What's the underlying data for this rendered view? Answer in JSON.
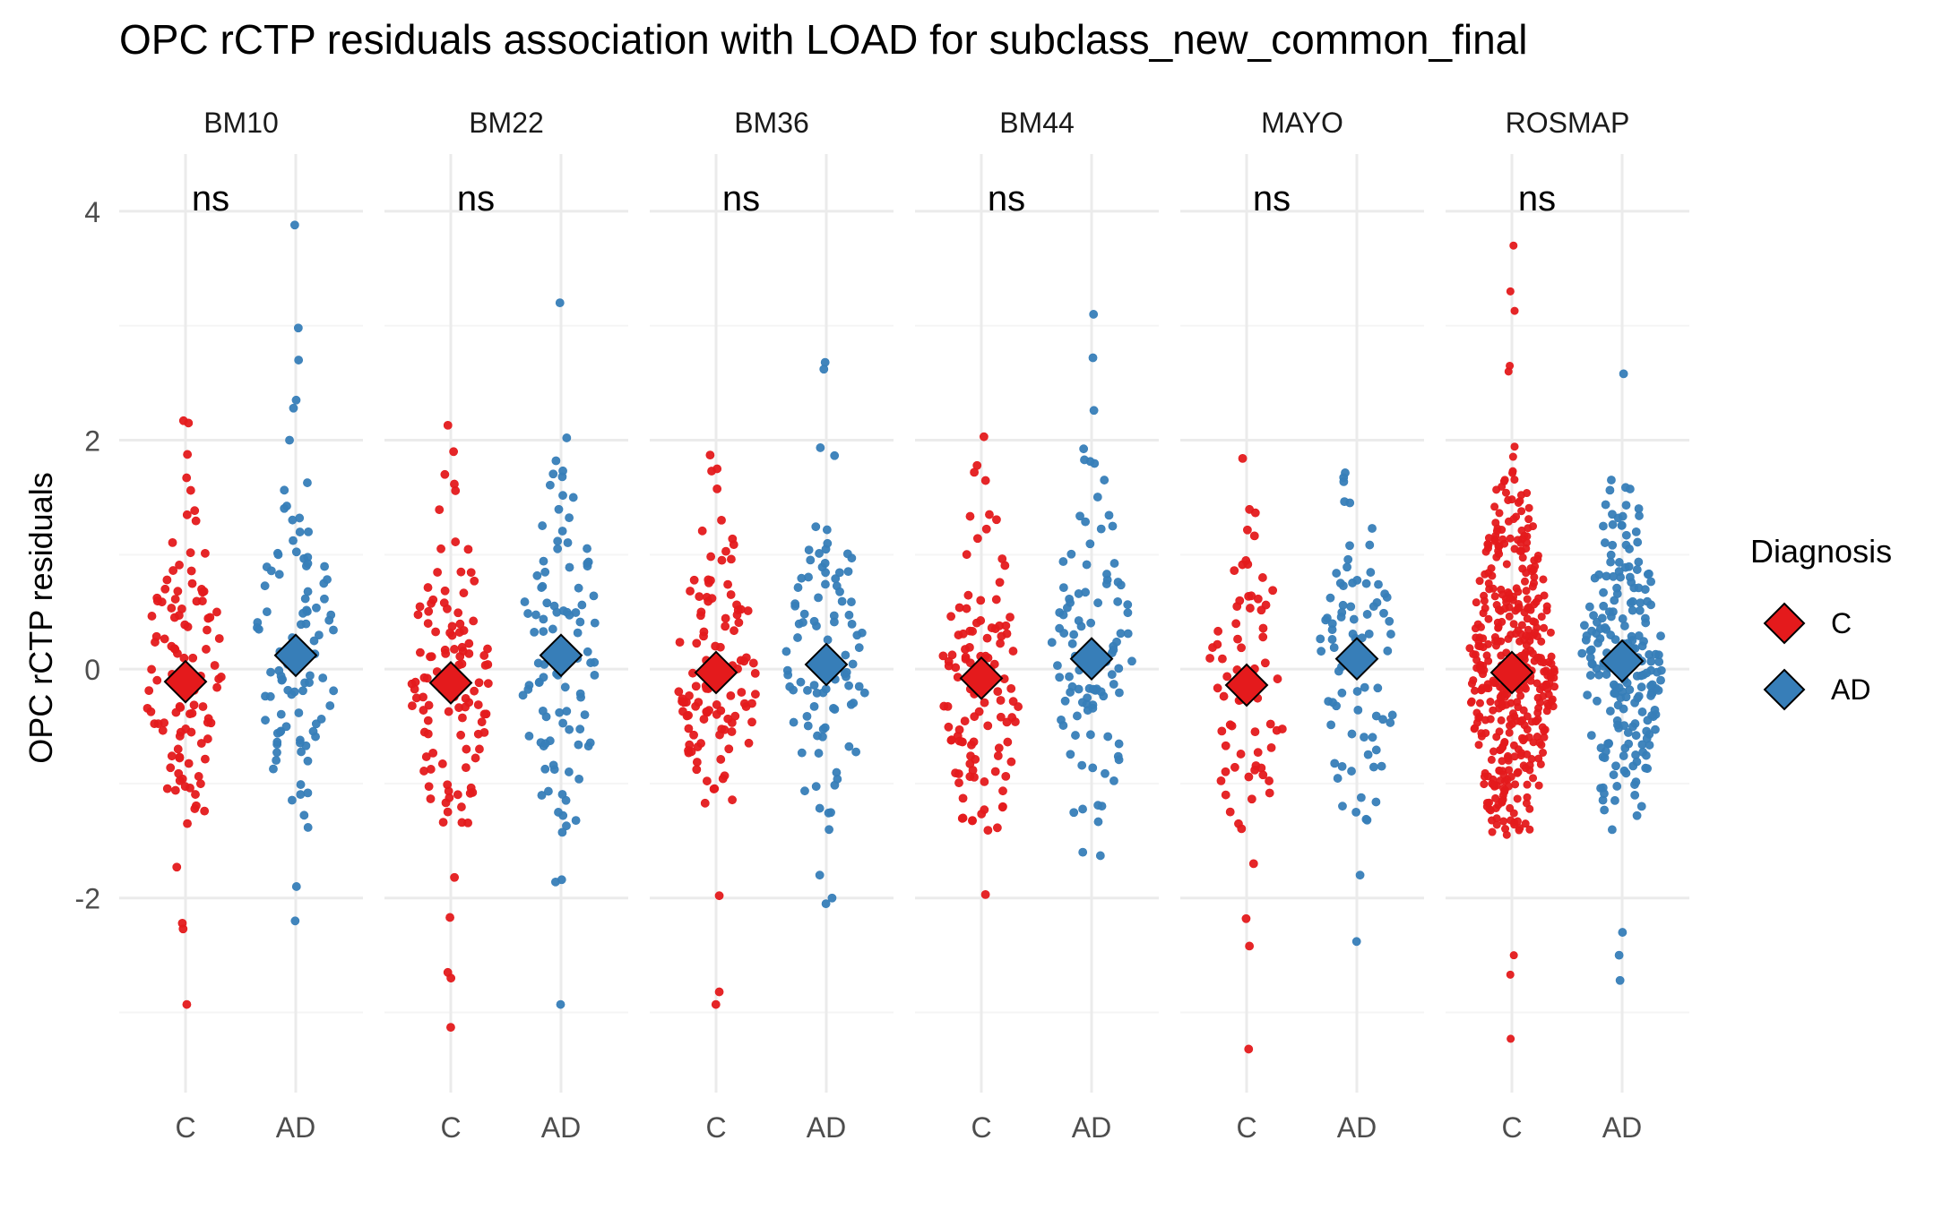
{
  "chart_data": {
    "type": "scatter",
    "title": "OPC rCTP residuals association with LOAD for subclass_new_common_final",
    "ylabel": "OPC rCTP residuals",
    "xlabel": "",
    "ylim": [
      -3.7,
      4.5
    ],
    "yticks": [
      -2,
      0,
      2,
      4
    ],
    "grid": true,
    "categories": [
      "C",
      "AD"
    ],
    "facets": [
      {
        "name": "BM10",
        "annotation": "ns",
        "groups": [
          {
            "diagnosis": "C",
            "mean": -0.11,
            "n": 110,
            "min": -2.93,
            "max": 2.15,
            "sd": 0.78,
            "outliers": [
              2.17,
              2.15,
              -1.73,
              -2.22,
              -2.27,
              -2.93
            ]
          },
          {
            "diagnosis": "AD",
            "mean": 0.12,
            "n": 100,
            "min": -2.2,
            "max": 3.88,
            "sd": 0.8,
            "outliers": [
              3.88,
              2.98,
              2.7,
              2.35,
              2.28,
              2.0,
              -1.9,
              -2.2
            ]
          }
        ]
      },
      {
        "name": "BM22",
        "annotation": "ns",
        "groups": [
          {
            "diagnosis": "C",
            "mean": -0.12,
            "n": 115,
            "min": -3.13,
            "max": 2.13,
            "sd": 0.8,
            "outliers": [
              2.13,
              1.9,
              -1.82,
              -2.17,
              -2.65,
              -2.7,
              -3.13
            ]
          },
          {
            "diagnosis": "AD",
            "mean": 0.12,
            "n": 100,
            "min": -2.93,
            "max": 3.2,
            "sd": 0.85,
            "outliers": [
              3.2,
              2.02,
              -1.84,
              -1.86,
              -2.93
            ]
          }
        ]
      },
      {
        "name": "BM36",
        "annotation": "ns",
        "groups": [
          {
            "diagnosis": "C",
            "mean": -0.03,
            "n": 110,
            "min": -2.93,
            "max": 1.87,
            "sd": 0.78,
            "outliers": [
              1.87,
              1.75,
              1.73,
              -1.98,
              -2.82,
              -2.93
            ]
          },
          {
            "diagnosis": "AD",
            "mean": 0.04,
            "n": 95,
            "min": -2.05,
            "max": 2.68,
            "sd": 0.85,
            "outliers": [
              2.68,
              2.62,
              -1.8,
              -2.0,
              -2.05
            ]
          }
        ]
      },
      {
        "name": "BM44",
        "annotation": "ns",
        "groups": [
          {
            "diagnosis": "C",
            "mean": -0.08,
            "n": 110,
            "min": -1.97,
            "max": 2.03,
            "sd": 0.8,
            "outliers": [
              2.03,
              -1.97
            ]
          },
          {
            "diagnosis": "AD",
            "mean": 0.09,
            "n": 100,
            "min": -1.63,
            "max": 3.1,
            "sd": 0.85,
            "outliers": [
              3.1,
              2.72,
              2.26,
              -1.6,
              -1.63
            ]
          }
        ]
      },
      {
        "name": "MAYO",
        "annotation": "ns",
        "groups": [
          {
            "diagnosis": "C",
            "mean": -0.14,
            "n": 75,
            "min": -3.32,
            "max": 1.65,
            "sd": 0.75,
            "outliers": [
              -1.7,
              -2.18,
              -2.42,
              -3.32
            ]
          },
          {
            "diagnosis": "AD",
            "mean": 0.09,
            "n": 80,
            "min": -2.38,
            "max": 1.98,
            "sd": 0.85,
            "outliers": [
              -1.8,
              -2.38
            ]
          }
        ]
      },
      {
        "name": "ROSMAP",
        "annotation": "ns",
        "groups": [
          {
            "diagnosis": "C",
            "mean": -0.03,
            "n": 420,
            "min": -3.23,
            "max": 3.7,
            "sd": 0.9,
            "outliers": [
              3.7,
              3.3,
              3.13,
              2.65,
              2.6,
              -2.5,
              -2.67,
              -3.23
            ]
          },
          {
            "diagnosis": "AD",
            "mean": 0.07,
            "n": 210,
            "min": -2.72,
            "max": 2.58,
            "sd": 0.85,
            "outliers": [
              2.58,
              -2.3,
              -2.5,
              -2.72
            ]
          }
        ]
      }
    ],
    "legend": {
      "title": "Diagnosis",
      "position": "right",
      "items": [
        {
          "label": "C",
          "color": "#e41a1c"
        },
        {
          "label": "AD",
          "color": "#377eb8"
        }
      ]
    },
    "colors": {
      "C": "#e41a1c",
      "AD": "#377eb8",
      "grid_major": "#ebebeb",
      "grid_minor": "#f5f5f5"
    }
  }
}
